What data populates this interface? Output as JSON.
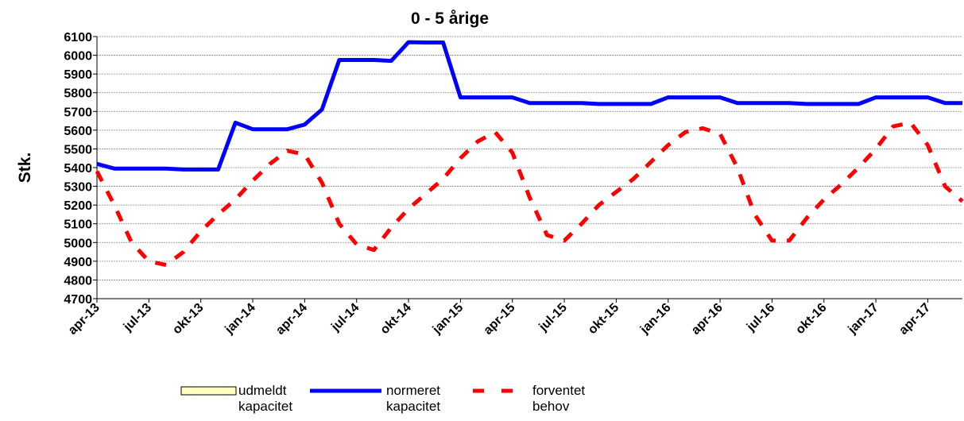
{
  "chart_data": {
    "type": "line",
    "title": "0 - 5 årige",
    "y_label": "Stk.",
    "categories": [
      "apr-13",
      null,
      null,
      "jul-13",
      null,
      null,
      "okt-13",
      null,
      null,
      "jan-14",
      null,
      null,
      "apr-14",
      null,
      null,
      "jul-14",
      null,
      null,
      "okt-14",
      null,
      null,
      "jan-15",
      null,
      null,
      "apr-15",
      null,
      null,
      "jul-15",
      null,
      null,
      "okt-15",
      null,
      null,
      "jan-16",
      null,
      null,
      "apr-16",
      null,
      null,
      "jul-16",
      null,
      null,
      "okt-16",
      null,
      null,
      "jan-17",
      null,
      null,
      "apr-17",
      null,
      null
    ],
    "series": [
      {
        "name": "udmeldt kapacitet",
        "color": "#ffffc0",
        "values": [
          null,
          null,
          null,
          null,
          null,
          null,
          null,
          null,
          null,
          null,
          null,
          null,
          null,
          null,
          null,
          null,
          null,
          null,
          null,
          null,
          null,
          null,
          null,
          null,
          null,
          null,
          null,
          null,
          null,
          null,
          null,
          null,
          null,
          null,
          null,
          null,
          null,
          null,
          null,
          null,
          null,
          null,
          null,
          null,
          null,
          null,
          null,
          null,
          null,
          null,
          null
        ]
      },
      {
        "name": "normeret kapacitet",
        "color": "#0000ff",
        "values": [
          5420,
          5395,
          5395,
          5395,
          5395,
          5390,
          5390,
          5390,
          5640,
          5605,
          5605,
          5605,
          5630,
          5710,
          5975,
          5975,
          5975,
          5970,
          6070,
          6068,
          6068,
          5775,
          5775,
          5775,
          5775,
          5745,
          5745,
          5745,
          5745,
          5740,
          5740,
          5740,
          5740,
          5775,
          5775,
          5775,
          5775,
          5745,
          5745,
          5745,
          5745,
          5740,
          5740,
          5740,
          5740,
          5775,
          5775,
          5775,
          5775,
          5745,
          5745
        ]
      },
      {
        "name": "forventet behov",
        "color": "#ff0000",
        "dashed": true,
        "values": [
          5380,
          5200,
          5000,
          4900,
          4880,
          4950,
          5060,
          5150,
          5230,
          5330,
          5420,
          5490,
          5470,
          5320,
          5100,
          4990,
          4960,
          5080,
          5180,
          5260,
          5340,
          5450,
          5540,
          5590,
          5480,
          5240,
          5040,
          5010,
          5100,
          5200,
          5270,
          5340,
          5430,
          5520,
          5590,
          5610,
          5580,
          5400,
          5150,
          5010,
          5010,
          5130,
          5230,
          5310,
          5400,
          5500,
          5620,
          5640,
          5520,
          5300,
          5220
        ]
      }
    ],
    "ylim": [
      4700,
      6100
    ],
    "yticks": [
      4700,
      4800,
      4900,
      5000,
      5100,
      5200,
      5300,
      5400,
      5500,
      5600,
      5700,
      5800,
      5900,
      6000,
      6100
    ],
    "grid": true
  }
}
